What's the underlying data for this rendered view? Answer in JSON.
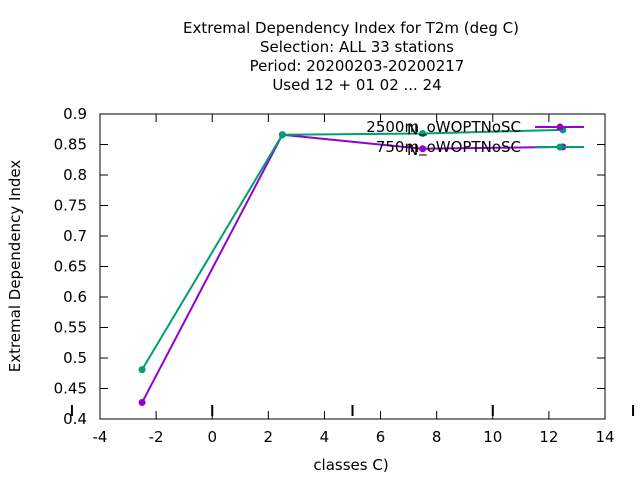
{
  "chart_data": {
    "type": "line",
    "title_lines": [
      "Extremal Dependency Index  for T2m (deg C)",
      "Selection: ALL     33 stations",
      "Period: 20200203-20200217",
      "Used  12 + 01 02 ... 24"
    ],
    "xlabel": "classes C)",
    "ylabel": "Extremal Dependency Index",
    "xlim": [
      -4,
      14
    ],
    "ylim": [
      0.4,
      0.9
    ],
    "xticks": [
      "-4",
      "-2",
      "0",
      "2",
      "4",
      "6",
      "8",
      "10",
      "12",
      "14"
    ],
    "yticks": [
      "0.4",
      "0.45",
      "0.5",
      "0.55",
      "0.6",
      "0.65",
      "0.7",
      "0.75",
      "0.8",
      "0.85",
      "0.9"
    ],
    "n_labels": [
      {
        "x": 7.5,
        "text": "N"
      },
      {
        "x": 7.5,
        "text": "N"
      }
    ],
    "legend_position": "top-right",
    "series": [
      {
        "name": "2500m_oWOPTNoSC",
        "color": "#9400d3",
        "x": [
          -2.5,
          2.5,
          7.5,
          12.5
        ],
        "y": [
          0.427,
          0.866,
          0.843,
          0.846
        ]
      },
      {
        "name": "750m_oWOPTNoSC",
        "color": "#009e73",
        "x": [
          -2.5,
          2.5,
          7.5,
          12.5
        ],
        "y": [
          0.481,
          0.866,
          0.868,
          0.874
        ]
      }
    ]
  }
}
